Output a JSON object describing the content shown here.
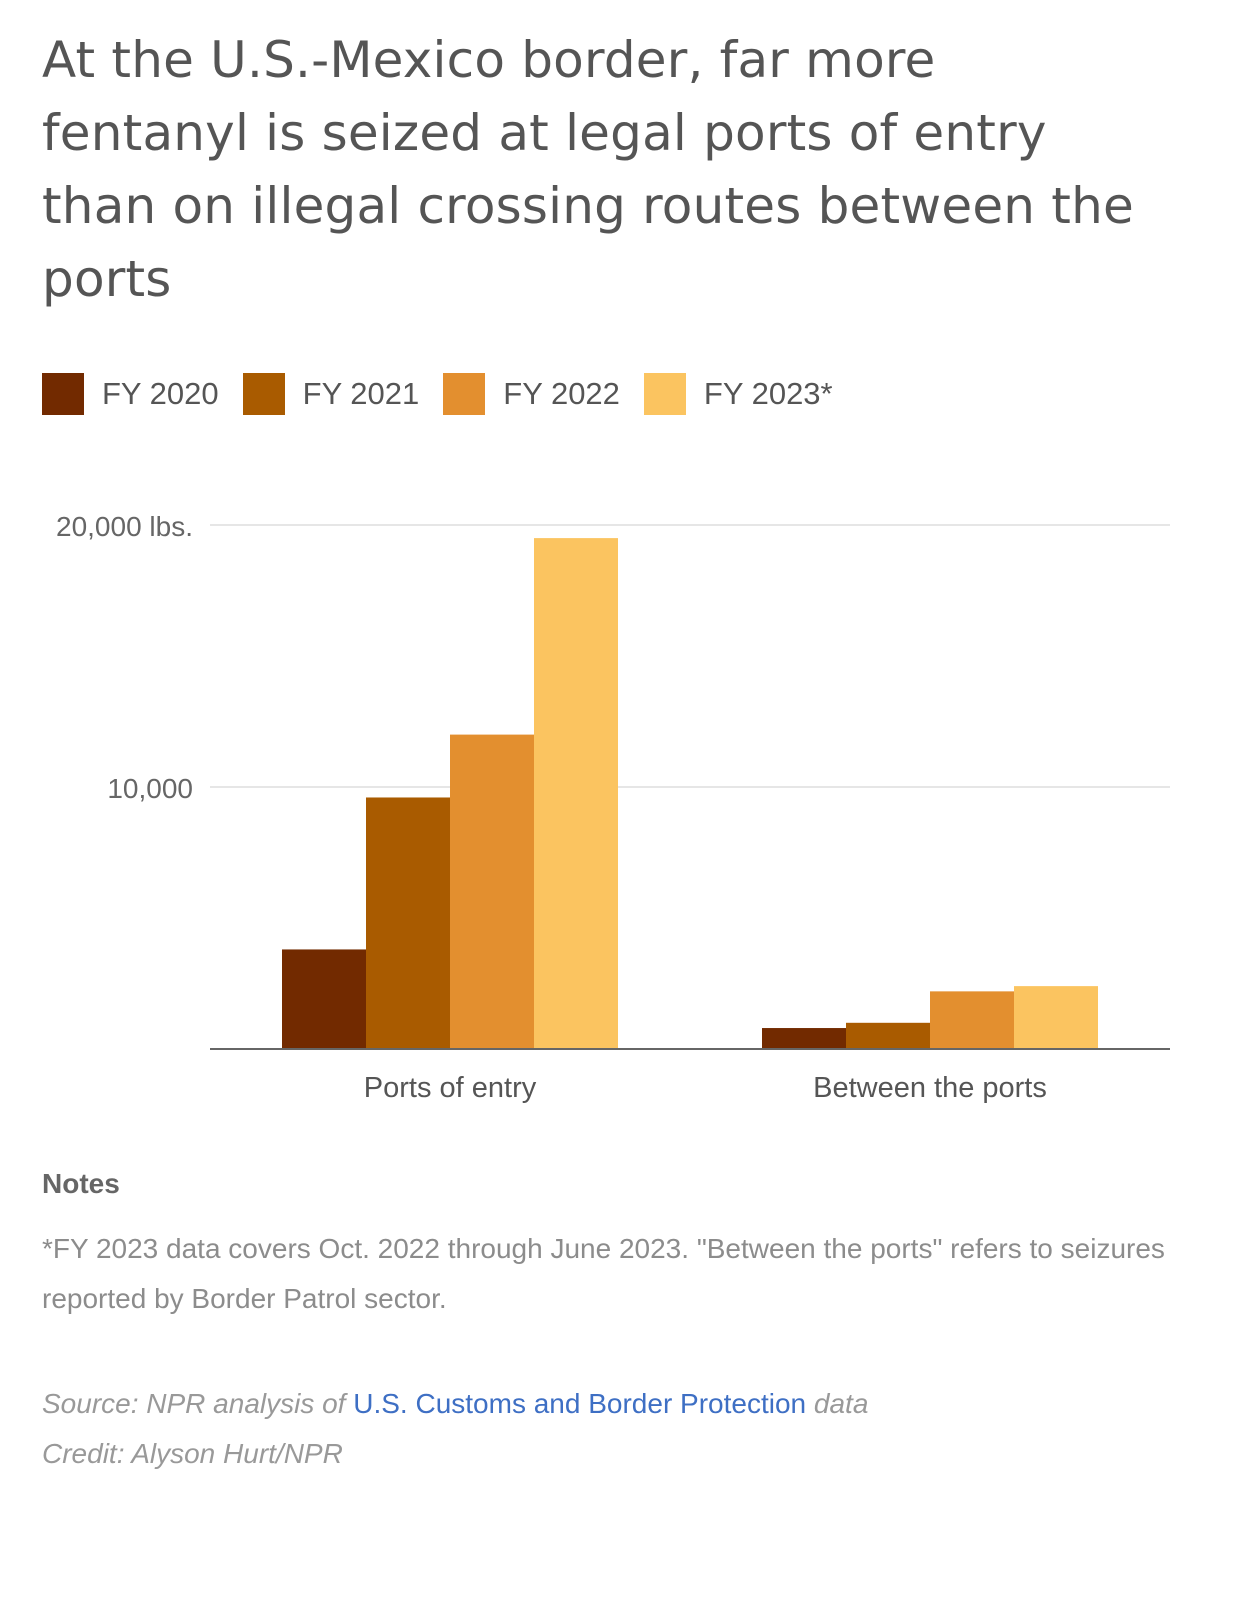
{
  "title": "At the U.S.-Mexico border, far more fentanyl is seized at legal ports of entry than on illegal crossing routes between the ports",
  "legend": [
    {
      "label": "FY 2020",
      "color": "#722a00"
    },
    {
      "label": "FY 2021",
      "color": "#a95b00"
    },
    {
      "label": "FY 2022",
      "color": "#e38f2f"
    },
    {
      "label": "FY 2023*",
      "color": "#fbc460"
    }
  ],
  "chart_data": {
    "type": "bar",
    "title": "At the U.S.-Mexico border, far more fentanyl is seized at legal ports of entry than on illegal crossing routes between the ports",
    "categories": [
      "Ports of entry",
      "Between the ports"
    ],
    "series": [
      {
        "name": "FY 2020",
        "values": [
          3800,
          800
        ]
      },
      {
        "name": "FY 2021",
        "values": [
          9600,
          1000
        ]
      },
      {
        "name": "FY 2022",
        "values": [
          12000,
          2200
        ]
      },
      {
        "name": "FY 2023*",
        "values": [
          19500,
          2400
        ]
      }
    ],
    "ytick_values": [
      10000,
      20000
    ],
    "ytick_labels": [
      "10,000",
      "20,000 lbs."
    ],
    "ylim": [
      0,
      20000
    ],
    "xlabel": "",
    "ylabel": "",
    "grid": true,
    "legend_position": "top-left"
  },
  "notes": {
    "heading": "Notes",
    "text": "*FY 2023 data covers Oct. 2022 through June 2023. \"Between the ports\" refers to seizures reported by Border Patrol sector."
  },
  "source": {
    "prefix": "Source: NPR analysis of",
    "link_text": "U.S. Customs and Border Protection",
    "suffix": "data"
  },
  "credit": "Credit: Alyson Hurt/NPR"
}
